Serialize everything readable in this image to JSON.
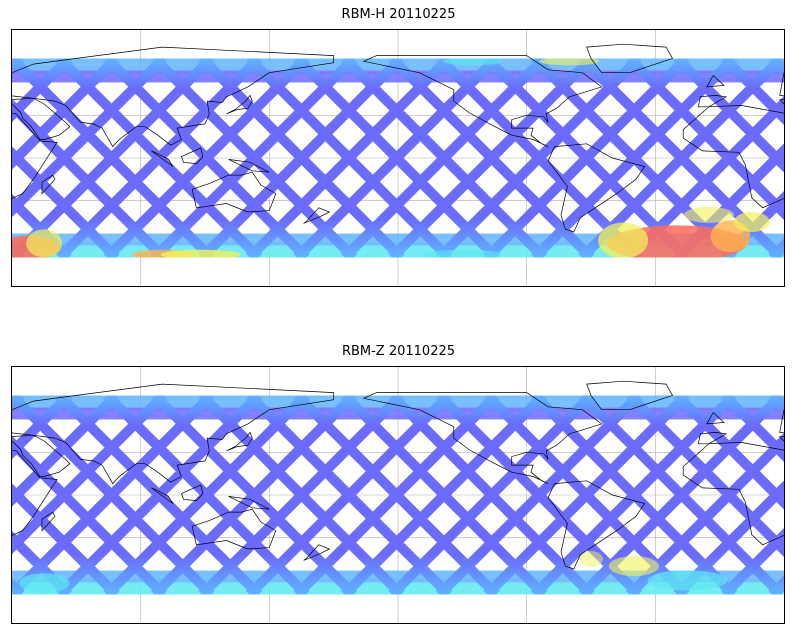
{
  "figure": {
    "panels": [
      {
        "id": "rbm-h",
        "title": "RBM-H 20110225"
      },
      {
        "id": "rbm-z",
        "title": "RBM-Z 20110225"
      }
    ]
  },
  "map": {
    "projection": "plate-carree",
    "lon_range": [
      30,
      390
    ],
    "lat_range": [
      -90,
      90
    ],
    "coverage_lat_range": [
      -70,
      70
    ],
    "gridlines": {
      "lon_step": 60,
      "lat_step": 30
    },
    "colormap": "jet-like (blue = low, cyan, yellow, red = high)"
  },
  "colors": {
    "track_low": "#6b6bff",
    "track_mid": "#5fb4ff",
    "cyan": "#5de8f0",
    "yellow": "#f2f25a",
    "orange": "#ffb14d",
    "red": "#ff6a5a",
    "coastline": "#000000",
    "grid": "#b0b0b0"
  }
}
